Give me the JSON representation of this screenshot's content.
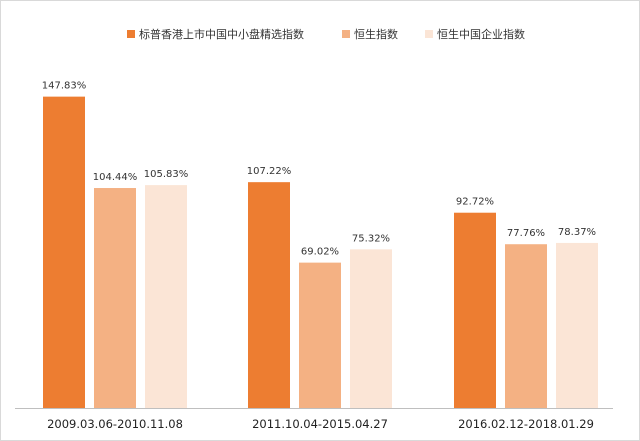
{
  "chart_data": {
    "type": "bar",
    "categories": [
      "2009.03.06-2010.11.08",
      "2011.10.04-2015.04.27",
      "2016.02.12-2018.01.29"
    ],
    "series": [
      {
        "name": "标普香港上市中国中小盘精选指数",
        "values": [
          147.83,
          107.22,
          92.72
        ],
        "labels": [
          "147.83%",
          "107.22%",
          "92.72%"
        ],
        "color": "#ED7D31"
      },
      {
        "name": "恒生指数",
        "values": [
          104.44,
          69.02,
          77.76
        ],
        "labels": [
          "104.44%",
          "69.02%",
          "77.76%"
        ],
        "color": "#F4B183"
      },
      {
        "name": "恒生中国企业指数",
        "values": [
          105.83,
          75.32,
          78.37
        ],
        "labels": [
          "105.83%",
          "75.32%",
          "78.37%"
        ],
        "color": "#FBE5D6"
      }
    ],
    "ylim": [
      0,
      160
    ],
    "value_unit": "%",
    "legend_position": "top-right",
    "grid": false
  }
}
